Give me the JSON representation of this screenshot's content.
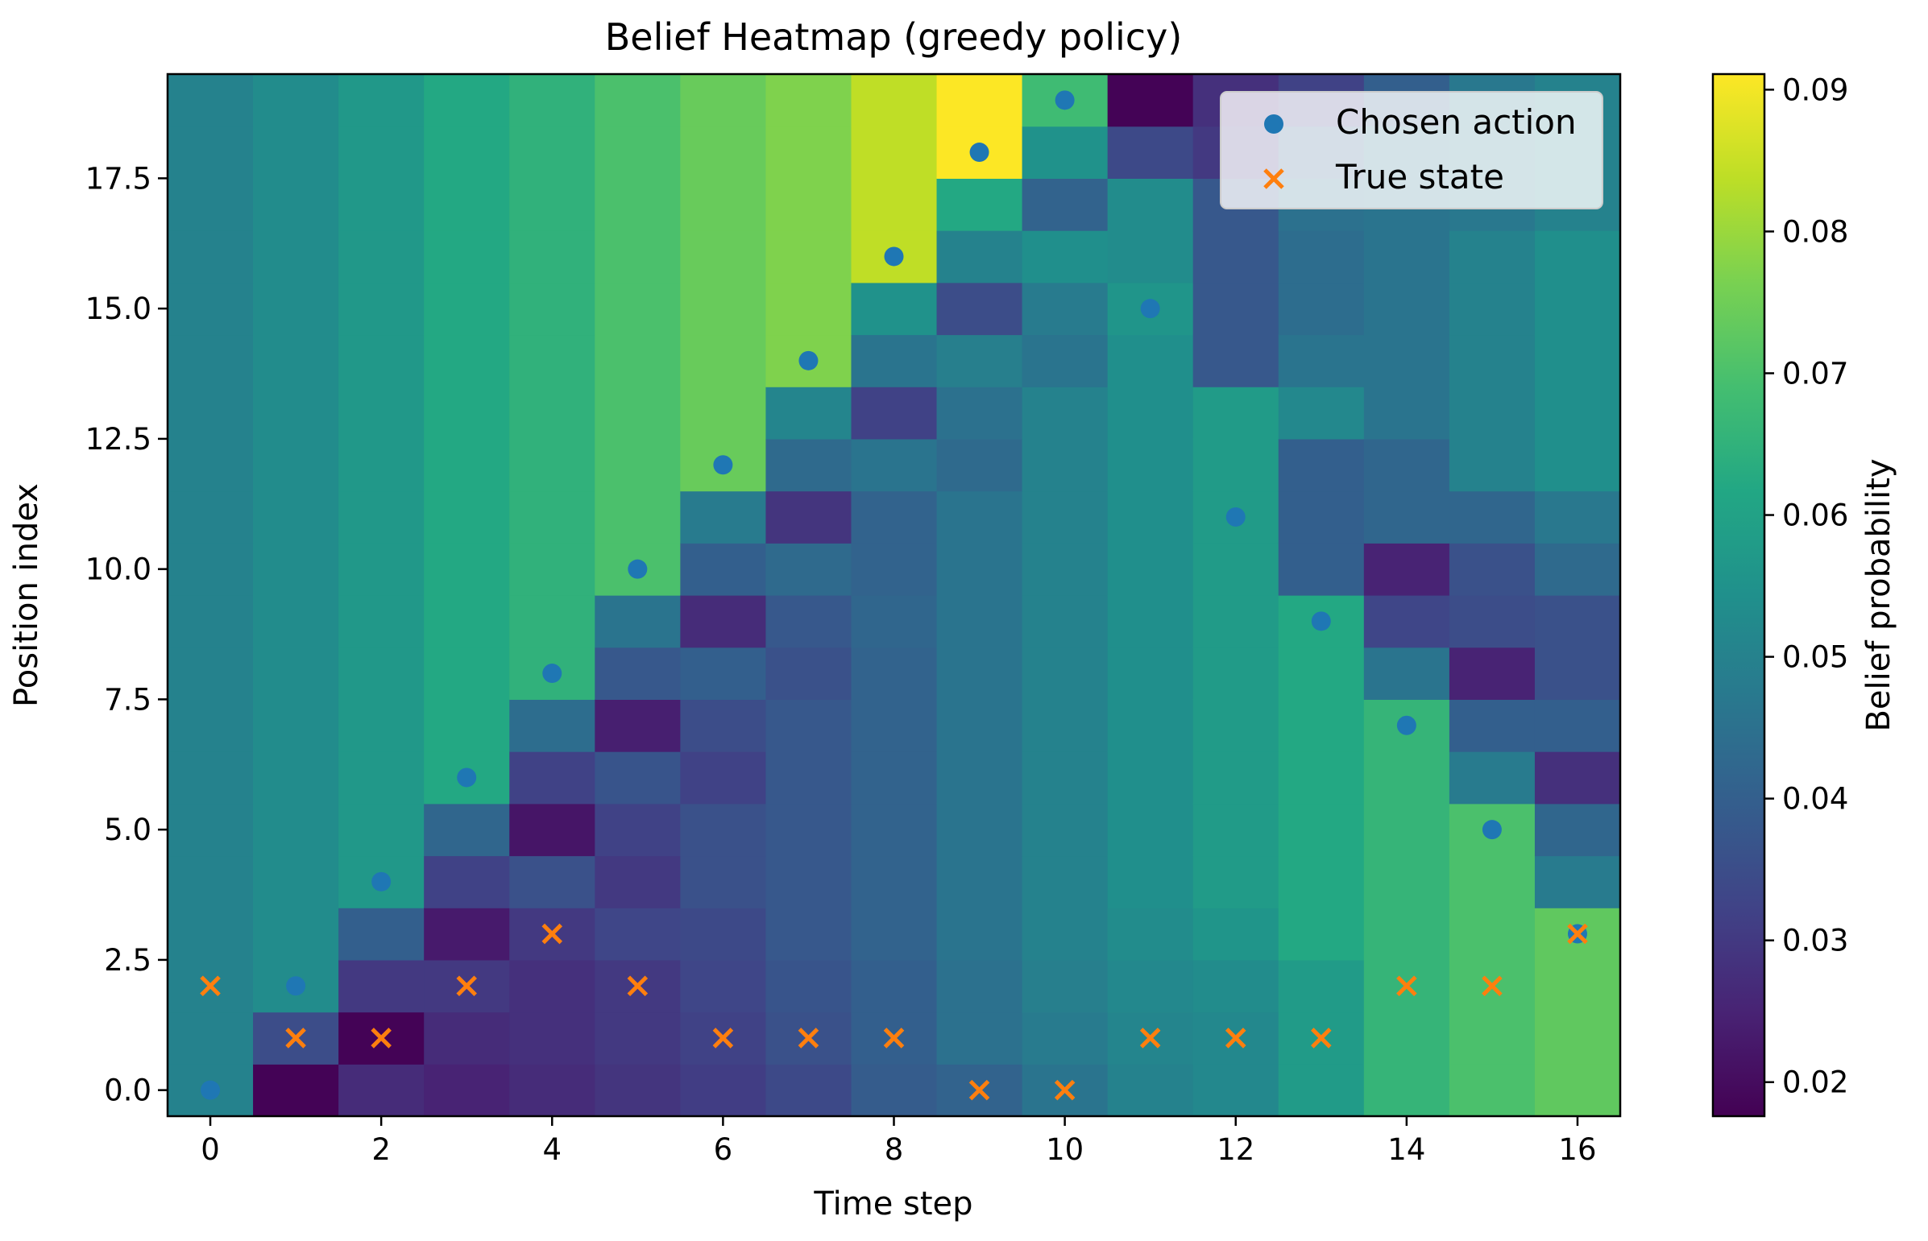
{
  "chart_data": {
    "type": "heatmap",
    "title": "Belief Heatmap (greedy policy)",
    "xlabel": "Time step",
    "ylabel": "Position index",
    "colorbar_label": "Belief probability",
    "colormap": "viridis",
    "color_range": [
      0.0176,
      0.0911
    ],
    "colorbar_ticks": [
      "0.02",
      "0.03",
      "0.04",
      "0.05",
      "0.06",
      "0.07",
      "0.08",
      "0.09"
    ],
    "x_ticks": [
      "0",
      "2",
      "4",
      "6",
      "8",
      "10",
      "12",
      "14",
      "16"
    ],
    "y_ticks": [
      "0.0",
      "2.5",
      "5.0",
      "7.5",
      "10.0",
      "12.5",
      "15.0",
      "17.5"
    ],
    "xlim": [
      -0.5,
      16.5
    ],
    "ylim": [
      -0.5,
      19.5
    ],
    "grid": false,
    "legend_placement": "upper right",
    "legend": [
      {
        "label": "Chosen action",
        "marker": "circle",
        "color": "#1f77b4"
      },
      {
        "label": "True state",
        "marker": "x",
        "color": "#ff7f0e"
      }
    ],
    "z_note_index": "z[time_step][position_index]",
    "z": [
      [
        0.05,
        0.05,
        0.05,
        0.05,
        0.05,
        0.05,
        0.05,
        0.05,
        0.05,
        0.05,
        0.05,
        0.05,
        0.05,
        0.05,
        0.05,
        0.05,
        0.05,
        0.05,
        0.05,
        0.05
      ],
      [
        0.018,
        0.035,
        0.053,
        0.053,
        0.053,
        0.053,
        0.053,
        0.053,
        0.053,
        0.053,
        0.053,
        0.053,
        0.053,
        0.053,
        0.053,
        0.053,
        0.053,
        0.053,
        0.053,
        0.053
      ],
      [
        0.027,
        0.018,
        0.03,
        0.04,
        0.057,
        0.057,
        0.057,
        0.057,
        0.057,
        0.057,
        0.057,
        0.057,
        0.057,
        0.057,
        0.057,
        0.057,
        0.057,
        0.057,
        0.057,
        0.057
      ],
      [
        0.025,
        0.027,
        0.03,
        0.023,
        0.032,
        0.042,
        0.062,
        0.062,
        0.062,
        0.062,
        0.062,
        0.062,
        0.062,
        0.062,
        0.062,
        0.062,
        0.062,
        0.062,
        0.062,
        0.062
      ],
      [
        0.027,
        0.028,
        0.028,
        0.03,
        0.036,
        0.022,
        0.032,
        0.044,
        0.065,
        0.065,
        0.065,
        0.065,
        0.065,
        0.065,
        0.065,
        0.065,
        0.065,
        0.065,
        0.065,
        0.065
      ],
      [
        0.029,
        0.03,
        0.03,
        0.033,
        0.03,
        0.032,
        0.037,
        0.024,
        0.038,
        0.046,
        0.07,
        0.07,
        0.07,
        0.07,
        0.07,
        0.07,
        0.07,
        0.07,
        0.07,
        0.07
      ],
      [
        0.031,
        0.032,
        0.033,
        0.034,
        0.036,
        0.036,
        0.032,
        0.035,
        0.04,
        0.027,
        0.04,
        0.048,
        0.074,
        0.074,
        0.074,
        0.074,
        0.074,
        0.074,
        0.074,
        0.074
      ],
      [
        0.034,
        0.036,
        0.037,
        0.038,
        0.038,
        0.038,
        0.038,
        0.038,
        0.036,
        0.038,
        0.043,
        0.029,
        0.043,
        0.051,
        0.077,
        0.077,
        0.077,
        0.077,
        0.077,
        0.077
      ],
      [
        0.039,
        0.04,
        0.04,
        0.041,
        0.041,
        0.041,
        0.041,
        0.041,
        0.041,
        0.042,
        0.041,
        0.041,
        0.046,
        0.032,
        0.046,
        0.055,
        0.084,
        0.084,
        0.084,
        0.084
      ],
      [
        0.041,
        0.045,
        0.045,
        0.046,
        0.046,
        0.046,
        0.046,
        0.046,
        0.046,
        0.046,
        0.046,
        0.046,
        0.043,
        0.045,
        0.049,
        0.035,
        0.05,
        0.062,
        0.091,
        0.091
      ],
      [
        0.046,
        0.048,
        0.049,
        0.05,
        0.05,
        0.05,
        0.05,
        0.05,
        0.05,
        0.05,
        0.05,
        0.05,
        0.05,
        0.05,
        0.046,
        0.048,
        0.054,
        0.041,
        0.055,
        0.068
      ],
      [
        0.05,
        0.051,
        0.052,
        0.053,
        0.054,
        0.054,
        0.054,
        0.054,
        0.054,
        0.054,
        0.054,
        0.054,
        0.054,
        0.054,
        0.054,
        0.056,
        0.053,
        0.053,
        0.034,
        0.018
      ],
      [
        0.052,
        0.052,
        0.053,
        0.056,
        0.058,
        0.058,
        0.058,
        0.058,
        0.058,
        0.058,
        0.058,
        0.058,
        0.058,
        0.058,
        0.038,
        0.038,
        0.038,
        0.038,
        0.03,
        0.028
      ],
      [
        0.058,
        0.058,
        0.058,
        0.062,
        0.062,
        0.062,
        0.062,
        0.062,
        0.062,
        0.062,
        0.04,
        0.04,
        0.04,
        0.052,
        0.046,
        0.044,
        0.044,
        0.045,
        0.04,
        0.032
      ],
      [
        0.066,
        0.066,
        0.066,
        0.066,
        0.066,
        0.066,
        0.066,
        0.066,
        0.046,
        0.033,
        0.025,
        0.042,
        0.042,
        0.046,
        0.046,
        0.046,
        0.046,
        0.046,
        0.046,
        0.04
      ],
      [
        0.07,
        0.07,
        0.07,
        0.07,
        0.07,
        0.07,
        0.048,
        0.04,
        0.025,
        0.035,
        0.036,
        0.042,
        0.05,
        0.05,
        0.05,
        0.05,
        0.05,
        0.047,
        0.047,
        0.047
      ],
      [
        0.073,
        0.073,
        0.073,
        0.073,
        0.048,
        0.042,
        0.028,
        0.04,
        0.036,
        0.036,
        0.043,
        0.047,
        0.054,
        0.054,
        0.054,
        0.054,
        0.054,
        0.05,
        0.05,
        0.05
      ]
    ],
    "chosen_action": [
      [
        0,
        0
      ],
      [
        1,
        2
      ],
      [
        2,
        4
      ],
      [
        3,
        6
      ],
      [
        4,
        8
      ],
      [
        5,
        10
      ],
      [
        6,
        12
      ],
      [
        7,
        14
      ],
      [
        8,
        16
      ],
      [
        9,
        18
      ],
      [
        10,
        19
      ],
      [
        11,
        15
      ],
      [
        12,
        11
      ],
      [
        13,
        9
      ],
      [
        14,
        7
      ],
      [
        15,
        5
      ],
      [
        16,
        3
      ]
    ],
    "true_state": [
      [
        0,
        2
      ],
      [
        1,
        1
      ],
      [
        2,
        1
      ],
      [
        3,
        2
      ],
      [
        4,
        3
      ],
      [
        5,
        2
      ],
      [
        6,
        1
      ],
      [
        7,
        1
      ],
      [
        8,
        1
      ],
      [
        9,
        0
      ],
      [
        10,
        0
      ],
      [
        11,
        1
      ],
      [
        12,
        1
      ],
      [
        13,
        1
      ],
      [
        14,
        2
      ],
      [
        15,
        2
      ],
      [
        16,
        3
      ]
    ]
  }
}
